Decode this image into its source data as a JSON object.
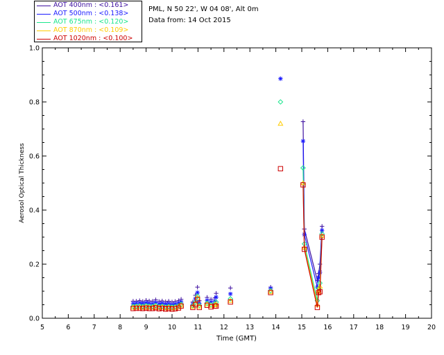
{
  "header": {
    "location": "PML, N 50 22', W 04 08', Alt 0m",
    "date": "Data from: 14 Oct 2015"
  },
  "legend": [
    {
      "label": "AOT  400nm : <0.161>",
      "color": "#3d0fa0"
    },
    {
      "label": "AOT  500nm : <0.138>",
      "color": "#1a1aff"
    },
    {
      "label": "AOT  675nm : <0.120>",
      "color": "#19e68c"
    },
    {
      "label": "AOT  870nm : <0.109>",
      "color": "#ffcc00"
    },
    {
      "label": "AOT 1020nm : <0.100>",
      "color": "#cc0000"
    }
  ],
  "chart_data": {
    "type": "scatter",
    "title": "",
    "xlabel": "Time (GMT)",
    "ylabel": "Aerosol Optical Thickness",
    "xlim": [
      5,
      20
    ],
    "ylim": [
      0,
      1.0
    ],
    "xticks": [
      "5",
      "6",
      "7",
      "8",
      "9",
      "10",
      "11",
      "12",
      "13",
      "14",
      "15",
      "16",
      "17",
      "18",
      "19",
      "20"
    ],
    "yticks": [
      "0.0",
      "0.2",
      "0.4",
      "0.6",
      "0.8",
      "1.0"
    ],
    "x": [
      8.5,
      8.62,
      8.75,
      8.87,
      9.0,
      9.12,
      9.25,
      9.37,
      9.5,
      9.62,
      9.75,
      9.87,
      10.0,
      10.12,
      10.25,
      10.35,
      10.8,
      10.9,
      10.98,
      11.05,
      11.35,
      11.5,
      11.65,
      11.7,
      12.25,
      13.8,
      14.18,
      15.05,
      15.1,
      15.6,
      15.65,
      15.7,
      15.78
    ],
    "series": [
      {
        "name": "AOT  400nm : <0.161>",
        "marker": "plus",
        "values": [
          0.063,
          0.063,
          0.065,
          0.062,
          0.066,
          0.064,
          0.063,
          0.068,
          0.062,
          0.064,
          0.061,
          0.063,
          0.06,
          0.062,
          0.065,
          0.07,
          0.06,
          0.085,
          0.115,
          0.065,
          0.077,
          0.07,
          0.075,
          0.092,
          0.112,
          0.115,
          null,
          0.727,
          0.33,
          0.14,
          0.165,
          0.2,
          0.34
        ],
        "connect_from_index": 27
      },
      {
        "name": "AOT  500nm : <0.138>",
        "marker": "star",
        "values": [
          0.054,
          0.055,
          0.056,
          0.054,
          0.057,
          0.055,
          0.054,
          0.058,
          0.053,
          0.055,
          0.052,
          0.054,
          0.051,
          0.053,
          0.056,
          0.06,
          0.052,
          0.072,
          0.095,
          0.055,
          0.066,
          0.06,
          0.063,
          0.078,
          0.09,
          0.11,
          0.886,
          0.655,
          0.31,
          0.115,
          0.15,
          0.17,
          0.325
        ],
        "connect_from_index": 27
      },
      {
        "name": "AOT  675nm : <0.120>",
        "marker": "diamond",
        "values": [
          0.044,
          0.045,
          0.046,
          0.044,
          0.047,
          0.045,
          0.044,
          0.048,
          0.043,
          0.045,
          0.042,
          0.044,
          0.042,
          0.043,
          0.046,
          0.052,
          0.046,
          0.06,
          0.082,
          0.048,
          0.056,
          0.05,
          0.053,
          0.06,
          0.072,
          0.102,
          0.8,
          0.556,
          0.275,
          0.065,
          0.11,
          0.13,
          0.312
        ],
        "connect_from_index": 27
      },
      {
        "name": "AOT  870nm : <0.109>",
        "marker": "triangle",
        "values": [
          0.04,
          0.041,
          0.041,
          0.04,
          0.042,
          0.04,
          0.04,
          0.043,
          0.039,
          0.041,
          0.038,
          0.04,
          0.038,
          0.039,
          0.042,
          0.048,
          0.043,
          0.055,
          0.076,
          0.044,
          0.052,
          0.046,
          0.049,
          0.052,
          0.065,
          0.098,
          0.72,
          0.5,
          0.262,
          0.05,
          0.1,
          0.118,
          0.305
        ],
        "connect_from_index": 27
      },
      {
        "name": "AOT 1020nm : <0.100>",
        "marker": "square",
        "values": [
          0.036,
          0.037,
          0.037,
          0.036,
          0.038,
          0.036,
          0.036,
          0.039,
          0.035,
          0.037,
          0.034,
          0.036,
          0.034,
          0.035,
          0.038,
          0.045,
          0.04,
          0.05,
          0.07,
          0.04,
          0.048,
          0.042,
          0.045,
          0.045,
          0.06,
          0.095,
          0.553,
          0.493,
          0.255,
          0.04,
          0.095,
          0.098,
          0.3
        ],
        "connect_from_index": 27
      }
    ]
  }
}
